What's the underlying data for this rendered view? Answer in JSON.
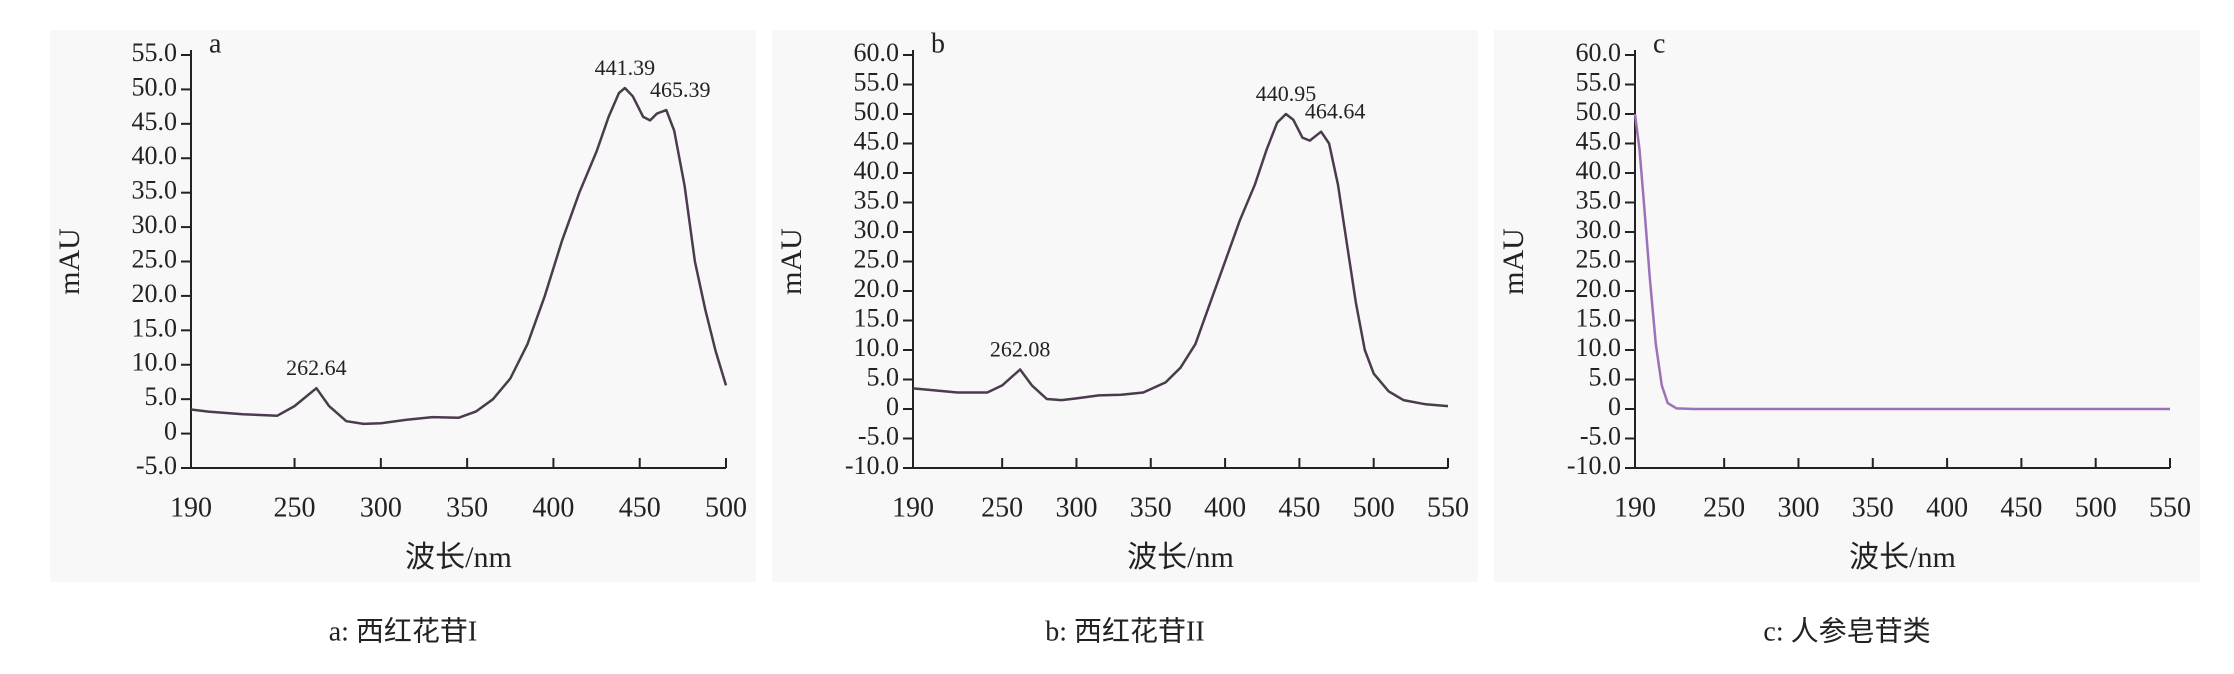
{
  "chart_data": [
    {
      "type": "line",
      "panel_label": "a",
      "caption": "a: 西红花苷I",
      "xlabel": "波长/nm",
      "ylabel": "mAU",
      "xlim": [
        190,
        500
      ],
      "xticks": [
        190,
        250,
        300,
        350,
        400,
        450,
        500
      ],
      "ylim": [
        -5,
        55
      ],
      "yticks": [
        {
          "value": -5,
          "label": "-5.0"
        },
        0,
        {
          "value": 5,
          "label": "5.0"
        },
        {
          "value": 10,
          "label": "10.0"
        },
        {
          "value": 15,
          "label": "15.0"
        },
        {
          "value": 20,
          "label": "20.0"
        },
        {
          "value": 25,
          "label": "25.0"
        },
        {
          "value": 30,
          "label": "30.0"
        },
        {
          "value": 35,
          "label": "35.0"
        },
        {
          "value": 40,
          "label": "40.0"
        },
        {
          "value": 45,
          "label": "45.0"
        },
        {
          "value": 50,
          "label": "50.0"
        },
        {
          "value": 55,
          "label": "55.0"
        }
      ],
      "series": [
        {
          "color": "#4a3c4c",
          "x": [
            190,
            200,
            220,
            240,
            250,
            262.64,
            270,
            280,
            290,
            300,
            315,
            330,
            345,
            355,
            365,
            375,
            385,
            395,
            405,
            415,
            425,
            432,
            438,
            441.39,
            446,
            452,
            456,
            460,
            465.39,
            470,
            476,
            482,
            488,
            494,
            500
          ],
          "values": [
            3.5,
            3.2,
            2.8,
            2.6,
            4,
            6.6,
            4,
            1.8,
            1.4,
            1.5,
            2,
            2.4,
            2.3,
            3.2,
            5,
            8,
            13,
            20,
            28,
            35,
            41,
            46,
            49.5,
            50.2,
            49,
            46,
            45.5,
            46.5,
            47,
            44,
            36,
            25,
            18,
            12,
            7
          ]
        }
      ],
      "annotations": [
        {
          "x": 262.64,
          "y": 6.6
        },
        {
          "x": 441.39,
          "y": 50.2
        },
        {
          "x": 465.39,
          "y": 47
        }
      ]
    },
    {
      "type": "line",
      "panel_label": "b",
      "caption": "b: 西红花苷II",
      "xlabel": "波长/nm",
      "ylabel": "mAU",
      "xlim": [
        190,
        550
      ],
      "xticks": [
        190,
        250,
        300,
        350,
        400,
        450,
        500,
        550
      ],
      "ylim": [
        -10,
        60
      ],
      "yticks": [
        {
          "value": -10,
          "label": "-10.0"
        },
        {
          "value": -5,
          "label": "-5.0"
        },
        0,
        {
          "value": 5,
          "label": "5.0"
        },
        {
          "value": 10,
          "label": "10.0"
        },
        {
          "value": 15,
          "label": "15.0"
        },
        {
          "value": 20,
          "label": "20.0"
        },
        {
          "value": 25,
          "label": "25.0"
        },
        {
          "value": 30,
          "label": "30.0"
        },
        {
          "value": 35,
          "label": "35.0"
        },
        {
          "value": 40,
          "label": "40.0"
        },
        {
          "value": 45,
          "label": "45.0"
        },
        {
          "value": 50,
          "label": "50.0"
        },
        {
          "value": 55,
          "label": "55.0"
        },
        {
          "value": 60,
          "label": "60.0"
        }
      ],
      "series": [
        {
          "color": "#4a3c4c",
          "x": [
            190,
            220,
            240,
            250,
            262.08,
            270,
            280,
            290,
            300,
            315,
            330,
            345,
            360,
            370,
            380,
            390,
            400,
            410,
            420,
            428,
            435,
            440.95,
            446,
            452,
            457,
            464.64,
            470,
            476,
            482,
            488,
            494,
            500,
            510,
            520,
            535,
            550
          ],
          "values": [
            3.5,
            2.8,
            2.8,
            4,
            6.7,
            4,
            1.7,
            1.5,
            1.8,
            2.3,
            2.4,
            2.8,
            4.5,
            7,
            11,
            18,
            25,
            32,
            38,
            44,
            48.5,
            50,
            49,
            46,
            45.5,
            47,
            45,
            38,
            28,
            18,
            10,
            6,
            3,
            1.5,
            0.8,
            0.5
          ]
        }
      ],
      "annotations": [
        {
          "x": 262.08,
          "y": 6.7
        },
        {
          "x": 440.95,
          "y": 50
        },
        {
          "x": 464.64,
          "y": 47
        }
      ]
    },
    {
      "type": "line",
      "panel_label": "c",
      "caption": "c: 人参皂苷类",
      "xlabel": "波长/nm",
      "ylabel": "mAU",
      "xlim": [
        190,
        550
      ],
      "xticks": [
        190,
        250,
        300,
        350,
        400,
        450,
        500,
        550
      ],
      "ylim": [
        -10,
        60
      ],
      "yticks": [
        {
          "value": -10,
          "label": "-10.0"
        },
        {
          "value": -5,
          "label": "-5.0"
        },
        0,
        {
          "value": 5,
          "label": "5.0"
        },
        {
          "value": 10,
          "label": "10.0"
        },
        {
          "value": 15,
          "label": "15.0"
        },
        {
          "value": 20,
          "label": "20.0"
        },
        {
          "value": 25,
          "label": "25.0"
        },
        {
          "value": 30,
          "label": "30.0"
        },
        {
          "value": 35,
          "label": "35.0"
        },
        {
          "value": 40,
          "label": "40.0"
        },
        {
          "value": 45,
          "label": "45.0"
        },
        {
          "value": 50,
          "label": "50.0"
        },
        {
          "value": 55,
          "label": "55.0"
        },
        {
          "value": 60,
          "label": "60.0"
        }
      ],
      "series": [
        {
          "color": "#9b72b8",
          "x": [
            190,
            193,
            196,
            200,
            204,
            208,
            212,
            218,
            230,
            300,
            550
          ],
          "values": [
            50,
            44,
            35,
            22,
            11,
            4,
            1,
            0.1,
            0,
            0,
            0
          ]
        }
      ],
      "annotations": []
    }
  ]
}
